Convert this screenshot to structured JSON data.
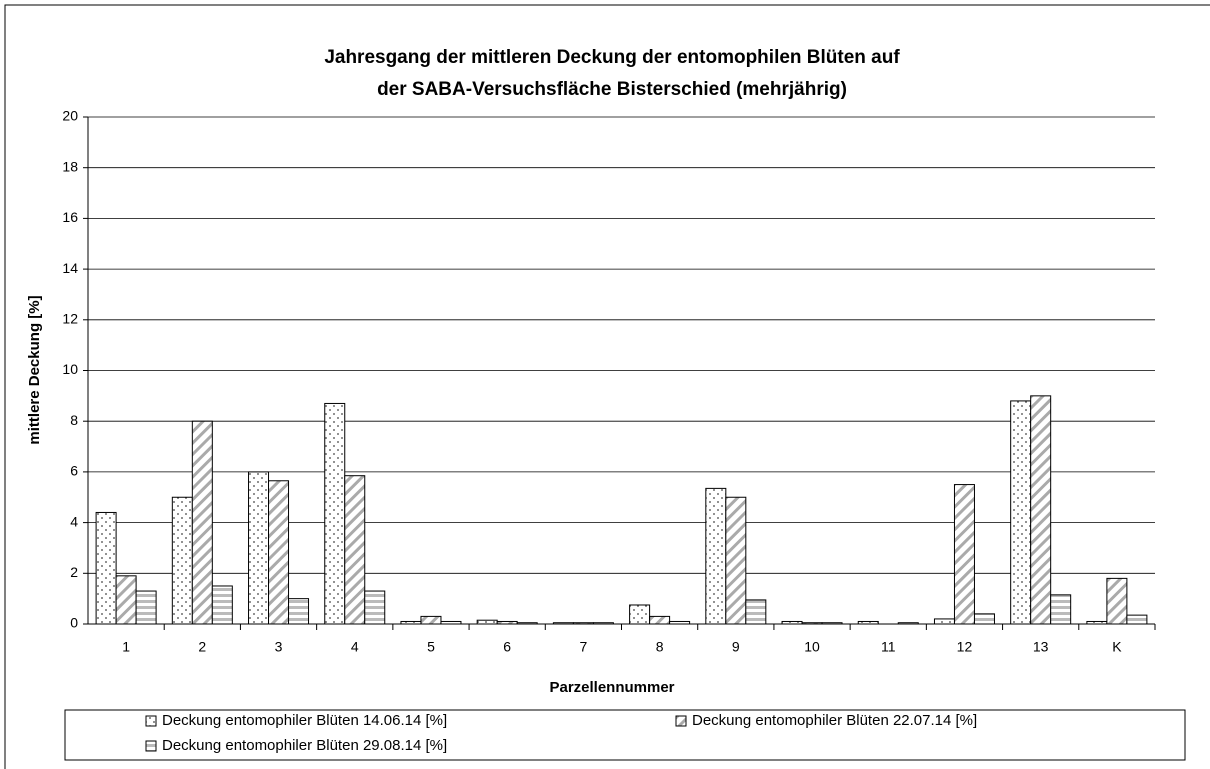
{
  "chart_data": {
    "type": "bar",
    "title": [
      "Jahresgang der mittleren Deckung der entomophilen Blüten auf",
      "der SABA-Versuchsfläche Bisterschied (mehrjährig)"
    ],
    "x_label": "Parzellennummer",
    "y_label": "mittlere Deckung [%]",
    "categories": [
      "1",
      "2",
      "3",
      "4",
      "5",
      "6",
      "7",
      "8",
      "9",
      "10",
      "11",
      "12",
      "13",
      "K"
    ],
    "series": [
      {
        "name": "Deckung entomophiler Blüten  14.06.14 [%]",
        "color": "#ffffff",
        "pattern": "dots",
        "values": [
          4.4,
          5.0,
          6.0,
          8.7,
          0.1,
          0.15,
          0.05,
          0.75,
          5.35,
          0.1,
          0.1,
          0.2,
          8.8,
          0.1
        ]
      },
      {
        "name": "Deckung entomophiler Blüten  22.07.14 [%]",
        "color": "#ffffff",
        "pattern": "diagonal",
        "values": [
          1.9,
          8.0,
          5.65,
          5.85,
          0.3,
          0.1,
          0.05,
          0.3,
          5.0,
          0.05,
          0,
          5.5,
          9.0,
          1.8
        ]
      },
      {
        "name": "Deckung entomophiler Blüten  29.08.14 [%]",
        "color": "#ffffff",
        "pattern": "horizontal",
        "values": [
          1.3,
          1.5,
          1.0,
          1.3,
          0.1,
          0.05,
          0.05,
          0.1,
          0.95,
          0.05,
          0.05,
          0.4,
          1.15,
          0.35
        ]
      }
    ],
    "ylim": [
      0,
      20
    ],
    "yticks": [
      0,
      2,
      4,
      6,
      8,
      10,
      12,
      14,
      16,
      18,
      20
    ],
    "grid": true
  }
}
